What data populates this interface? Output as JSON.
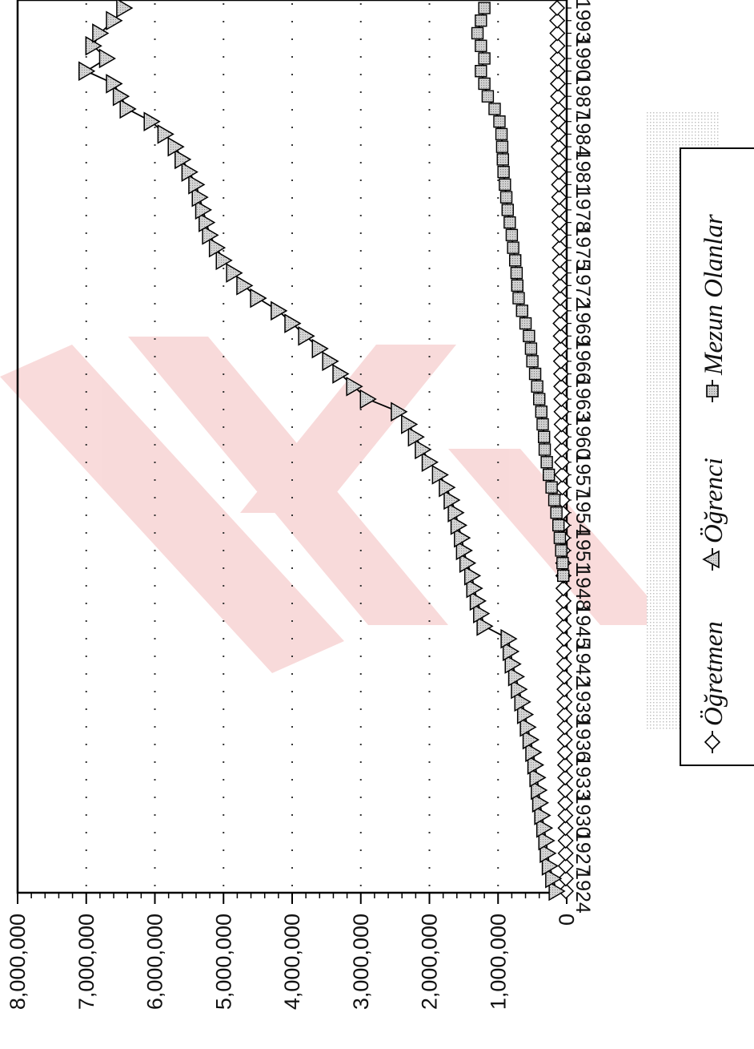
{
  "chart_data": {
    "type": "line",
    "orientation": "rotated-90",
    "title": "",
    "xlabel": "",
    "ylabel": "",
    "ylim": [
      0,
      8000000
    ],
    "y_ticks": [
      "0",
      "1,000,000",
      "2,000,000",
      "3,000,000",
      "4,000,000",
      "5,000,000",
      "6,000,000",
      "7,000,000",
      "8,000,000"
    ],
    "y_tick_values": [
      0,
      1000000,
      2000000,
      3000000,
      4000000,
      5000000,
      6000000,
      7000000,
      8000000
    ],
    "x_ticks": [
      "1924",
      "1927",
      "1930",
      "1933",
      "1936",
      "1939",
      "1942",
      "1945",
      "1948",
      "1951",
      "1954",
      "1957",
      "1960",
      "1963",
      "1966",
      "1969",
      "1972",
      "1975",
      "1978",
      "1981",
      "1984",
      "1987",
      "1990",
      "1993"
    ],
    "x": [
      1924,
      1925,
      1926,
      1927,
      1928,
      1929,
      1930,
      1931,
      1932,
      1933,
      1934,
      1935,
      1936,
      1937,
      1938,
      1939,
      1940,
      1941,
      1942,
      1943,
      1944,
      1945,
      1946,
      1947,
      1948,
      1949,
      1950,
      1951,
      1952,
      1953,
      1954,
      1955,
      1956,
      1957,
      1958,
      1959,
      1960,
      1961,
      1962,
      1963,
      1964,
      1965,
      1966,
      1967,
      1968,
      1969,
      1970,
      1971,
      1972,
      1973,
      1974,
      1975,
      1976,
      1977,
      1978,
      1979,
      1980,
      1981,
      1982,
      1983,
      1984,
      1985,
      1986,
      1987,
      1988,
      1989,
      1990,
      1991,
      1992,
      1993,
      1994
    ],
    "grid": "horizontal-dotted",
    "legend_position": "right",
    "series": [
      {
        "name": "Öğretmen",
        "marker": "diamond",
        "values": [
          12000,
          13000,
          14000,
          15000,
          16000,
          17000,
          19000,
          20000,
          21000,
          22000,
          24000,
          25000,
          27000,
          28000,
          30000,
          32000,
          33000,
          35000,
          37000,
          38000,
          40000,
          42000,
          44000,
          46000,
          48000,
          50000,
          52000,
          54000,
          56000,
          58000,
          60000,
          62000,
          64000,
          66000,
          68000,
          70000,
          72000,
          74000,
          76000,
          78000,
          80000,
          82000,
          84000,
          86000,
          88000,
          90000,
          92000,
          94000,
          96000,
          98000,
          100000,
          102000,
          104000,
          106000,
          108000,
          110000,
          112000,
          114000,
          116000,
          118000,
          120000,
          122000,
          124000,
          126000,
          128000,
          130000,
          132000,
          134000,
          136000,
          138000,
          140000
        ]
      },
      {
        "name": "Öğrenci",
        "marker": "triangle",
        "values": [
          150000,
          200000,
          250000,
          280000,
          300000,
          330000,
          360000,
          390000,
          410000,
          430000,
          460000,
          490000,
          530000,
          570000,
          610000,
          650000,
          700000,
          740000,
          790000,
          820000,
          850000,
          1200000,
          1250000,
          1300000,
          1350000,
          1380000,
          1450000,
          1500000,
          1530000,
          1580000,
          1620000,
          1680000,
          1750000,
          1850000,
          2000000,
          2100000,
          2200000,
          2300000,
          2450000,
          2900000,
          3100000,
          3300000,
          3450000,
          3600000,
          3800000,
          4000000,
          4200000,
          4500000,
          4700000,
          4850000,
          5000000,
          5100000,
          5200000,
          5250000,
          5300000,
          5350000,
          5400000,
          5500000,
          5600000,
          5700000,
          5850000,
          6050000,
          6400000,
          6500000,
          6600000,
          7000000,
          6700000,
          6900000,
          6800000,
          6600000,
          6450000
        ]
      },
      {
        "name": "Mezun Olanlar",
        "marker": "square",
        "values": [
          0,
          0,
          0,
          0,
          0,
          0,
          0,
          0,
          0,
          0,
          0,
          0,
          0,
          0,
          0,
          0,
          0,
          0,
          0,
          0,
          0,
          0,
          0,
          0,
          0,
          50000,
          60000,
          80000,
          100000,
          120000,
          150000,
          180000,
          220000,
          260000,
          290000,
          320000,
          330000,
          350000,
          370000,
          400000,
          430000,
          460000,
          500000,
          520000,
          550000,
          600000,
          650000,
          700000,
          720000,
          730000,
          750000,
          780000,
          800000,
          830000,
          860000,
          880000,
          900000,
          920000,
          930000,
          940000,
          950000,
          980000,
          1050000,
          1150000,
          1200000,
          1250000,
          1200000,
          1250000,
          1300000,
          1250000,
          1200000
        ]
      }
    ]
  }
}
